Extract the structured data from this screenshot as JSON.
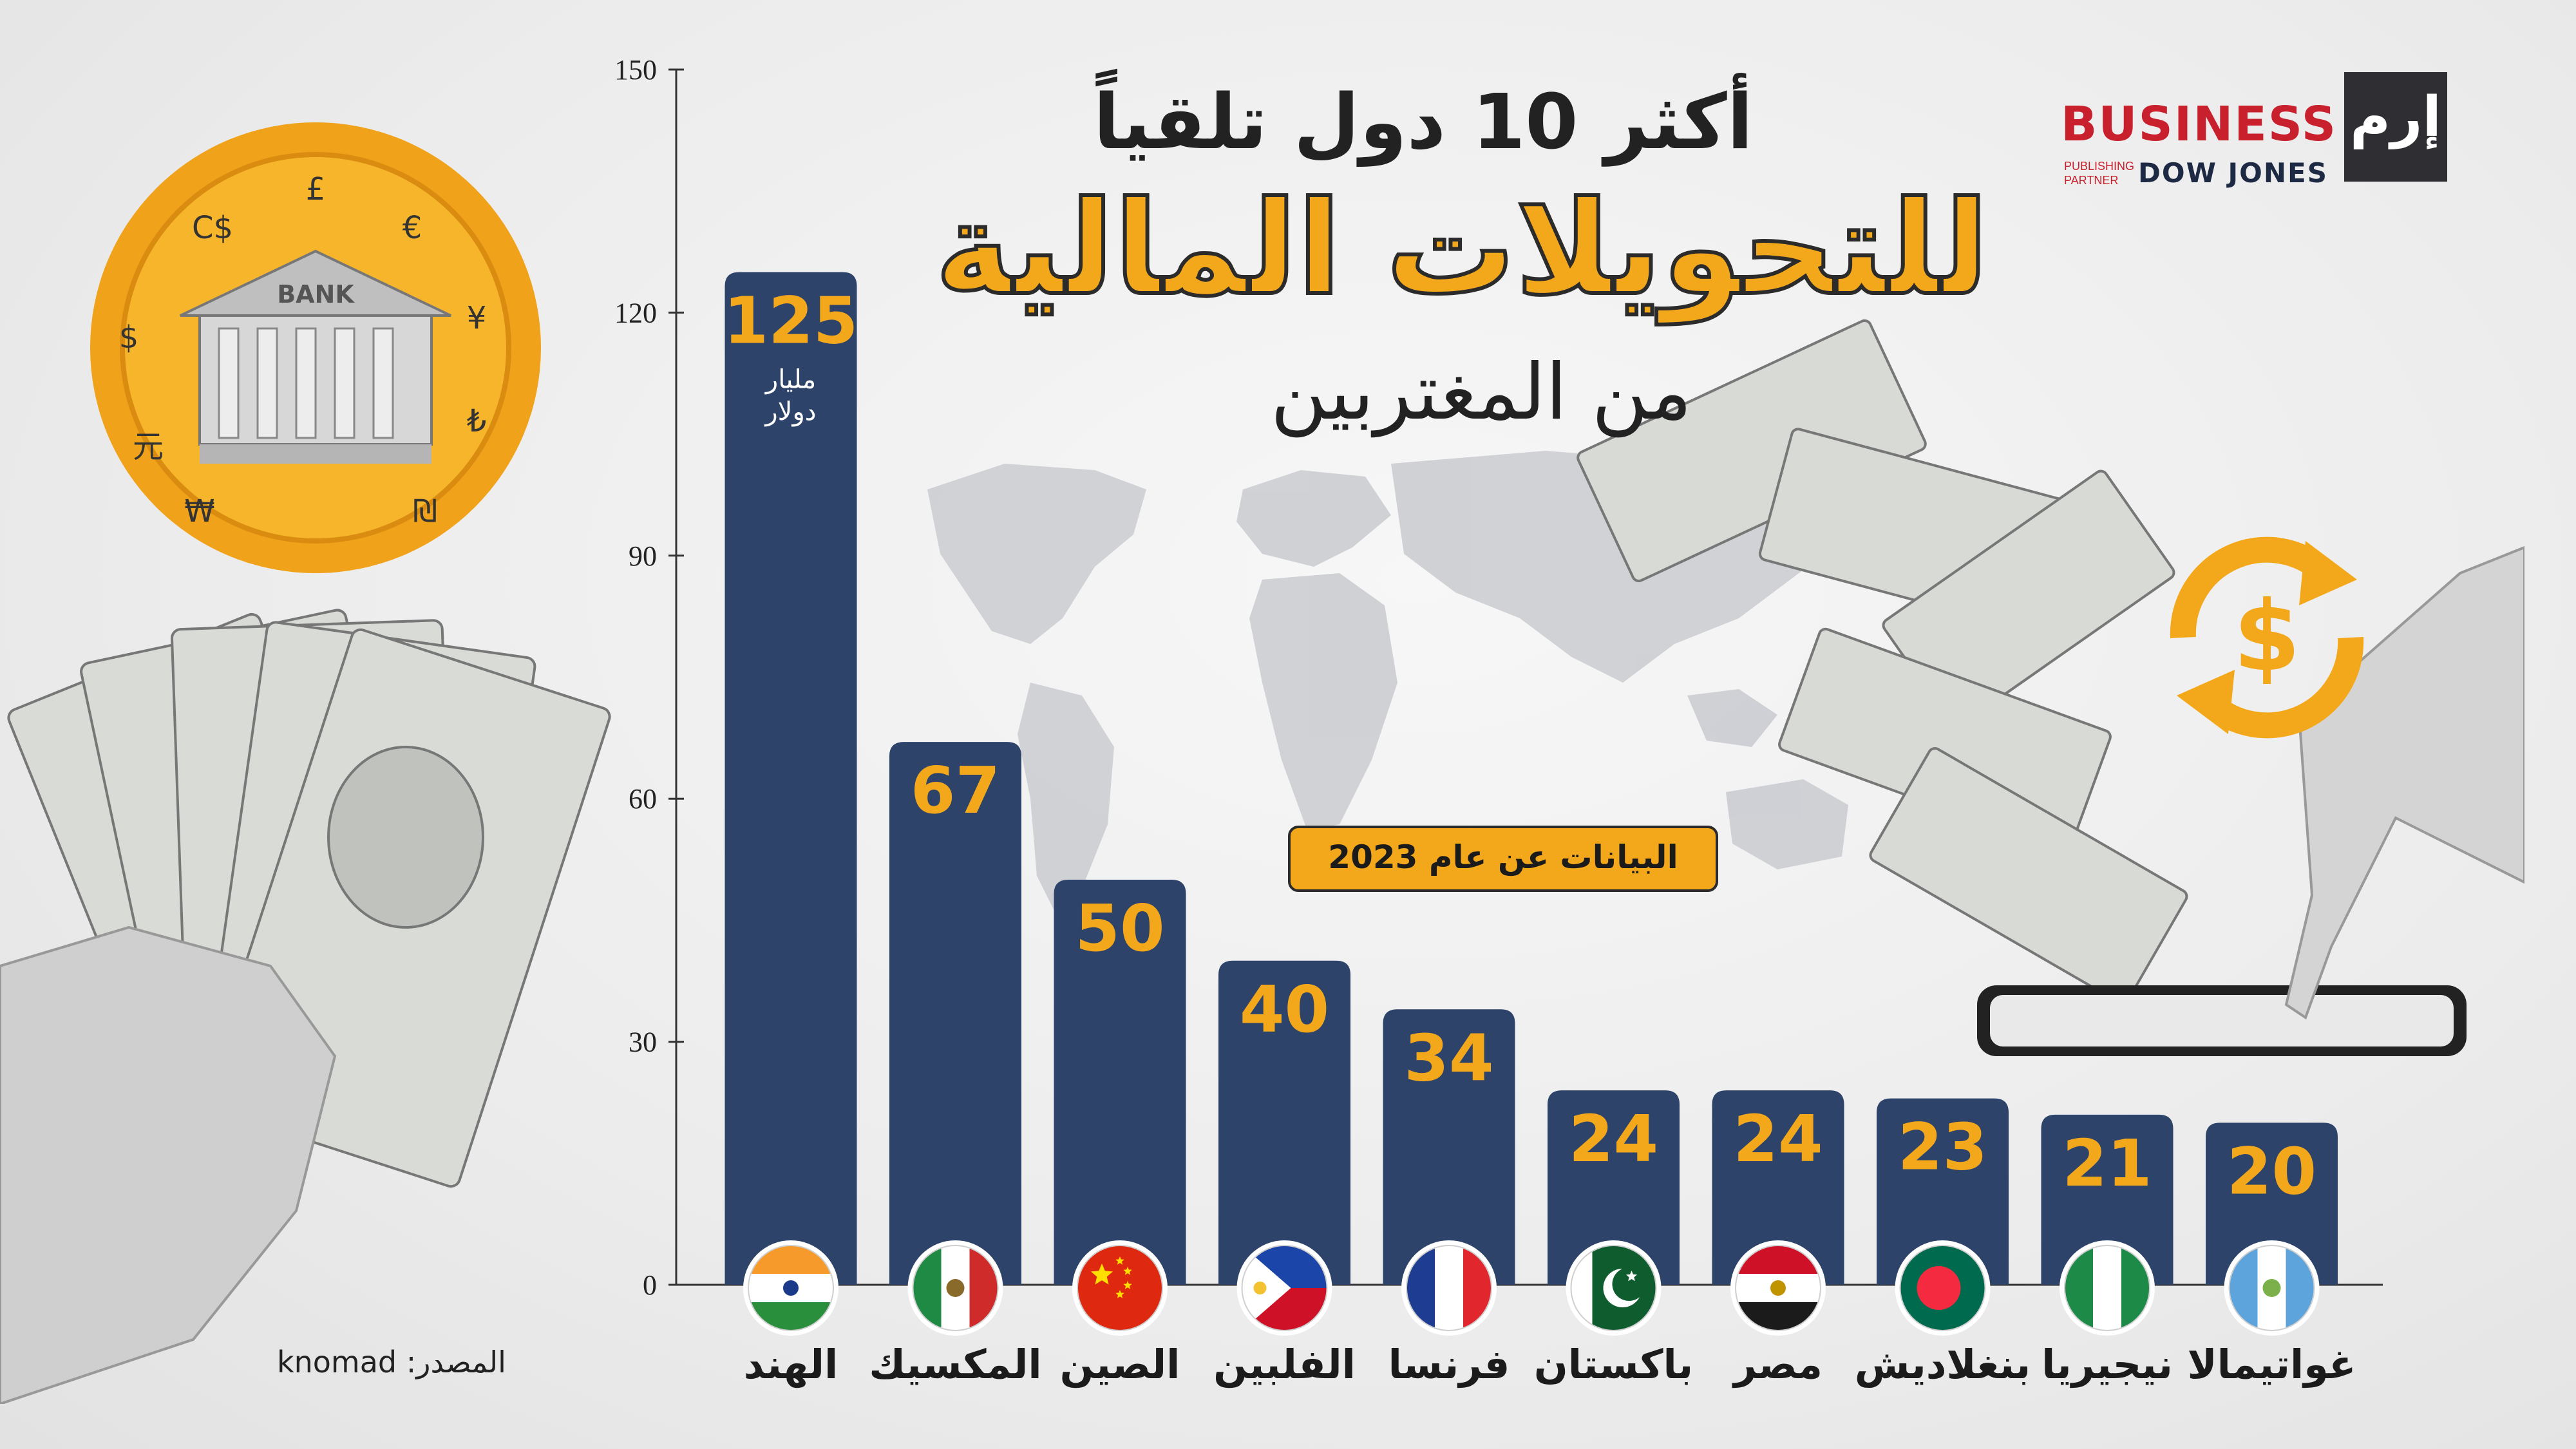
{
  "title": {
    "line1": "أكثر 10 دول تلقياً",
    "line2": "للتحويلات المالية",
    "line3": "من المغتربين"
  },
  "logo": {
    "arabic": "إرم",
    "business": "BUSINESS",
    "publishing": "PUBLISHING",
    "partner": "PARTNER",
    "dow_jones": "DOW JONES"
  },
  "year_badge": "البيانات عن عام 2023",
  "unit_label": [
    "مليار",
    "دولار"
  ],
  "source": "المصدر: knomad",
  "illustration": {
    "bank_sign": "BANK",
    "currency_symbols": [
      "£",
      "€",
      "¥",
      "₺",
      "₪",
      "₩",
      "元",
      "$",
      "C$"
    ]
  },
  "colors": {
    "bar": "#2e4369",
    "value": "#f3a81c",
    "accent": "#f3a81c"
  },
  "chart_data": {
    "type": "bar",
    "categories": [
      "الهند",
      "المكسيك",
      "الصين",
      "الفلبين",
      "فرنسا",
      "باكستان",
      "مصر",
      "بنغلاديش",
      "نيجيريا",
      "غواتيمالا"
    ],
    "values": [
      125,
      67,
      50,
      40,
      34,
      24,
      24,
      23,
      21,
      20
    ],
    "flag_icons": [
      "india-flag-icon",
      "mexico-flag-icon",
      "china-flag-icon",
      "philippines-flag-icon",
      "france-flag-icon",
      "pakistan-flag-icon",
      "egypt-flag-icon",
      "bangladesh-flag-icon",
      "nigeria-flag-icon",
      "guatemala-flag-icon"
    ],
    "yticks": [
      0,
      30,
      60,
      90,
      120,
      150
    ],
    "ylim": [
      0,
      150
    ],
    "title": "أكثر 10 دول تلقياً للتحويلات المالية من المغتربين",
    "xlabel": "",
    "ylabel": "",
    "grid": false,
    "legend": "none"
  }
}
